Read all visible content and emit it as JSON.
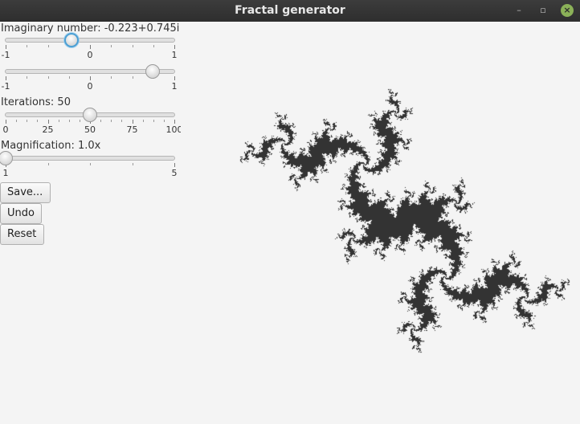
{
  "window": {
    "title": "Fractal generator",
    "minimize_glyph": "–",
    "maximize_glyph": "▫",
    "close_glyph": "×"
  },
  "controls": {
    "imaginary_label": "Imaginary number: -0.223+0.745i",
    "real_slider": {
      "min": -1,
      "max": 1,
      "value": -0.223,
      "tick_labels": [
        "-1",
        "0",
        "1"
      ]
    },
    "imag_slider": {
      "min": -1,
      "max": 1,
      "value": 0.745,
      "tick_labels": [
        "-1",
        "0",
        "1"
      ]
    },
    "iterations_label": "Iterations: 50",
    "iterations_slider": {
      "min": 0,
      "max": 100,
      "value": 50,
      "tick_labels": [
        "0",
        "25",
        "50",
        "75",
        "100"
      ]
    },
    "magnification_label": "Magnification: 1.0x",
    "magnification_slider": {
      "min": 1,
      "max": 5,
      "value": 1,
      "tick_labels": [
        "1",
        "5"
      ]
    }
  },
  "buttons": {
    "save": "Save...",
    "undo": "Undo",
    "reset": "Reset"
  },
  "fractal": {
    "c_re": -0.223,
    "c_im": 0.745,
    "max_iterations": 50,
    "magnification": 1.0,
    "fill_color": "#333333",
    "background_color": "#f4f4f4"
  }
}
